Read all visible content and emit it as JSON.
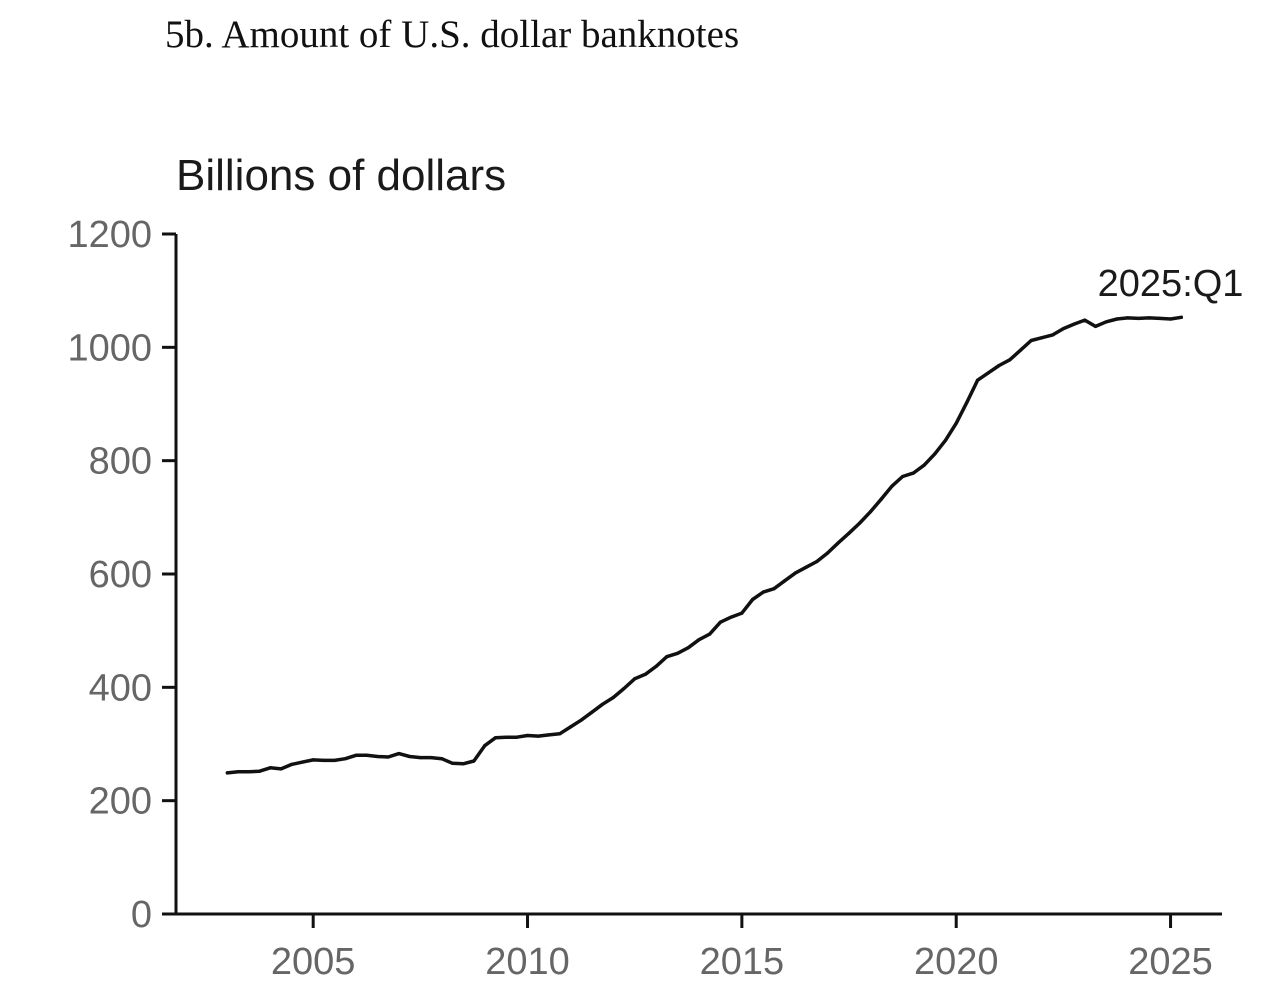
{
  "title": "5b. Amount of U.S. dollar banknotes",
  "chart_data": {
    "type": "line",
    "title": "5b. Amount of U.S. dollar banknotes",
    "ylabel": "Billions of dollars",
    "xlabel": "",
    "xlim": [
      2001.8,
      2026.2
    ],
    "ylim": [
      0,
      1200
    ],
    "yticks": [
      0,
      200,
      400,
      600,
      800,
      1000,
      1200
    ],
    "xticks": [
      2005,
      2010,
      2015,
      2020,
      2025
    ],
    "grid": false,
    "line_color": "#111111",
    "annotation": {
      "text": "2025:Q1",
      "x": 2025.0,
      "y": 1050
    },
    "series": [
      {
        "x": [
          2003.0,
          2003.25,
          2003.5,
          2003.75,
          2004.0,
          2004.25,
          2004.5,
          2004.75,
          2005.0,
          2005.25,
          2005.5,
          2005.75,
          2006.0,
          2006.25,
          2006.5,
          2006.75,
          2007.0,
          2007.25,
          2007.5,
          2007.75,
          2008.0,
          2008.25,
          2008.5,
          2008.75,
          2009.0,
          2009.25,
          2009.5,
          2009.75,
          2010.0,
          2010.25,
          2010.5,
          2010.75,
          2011.0,
          2011.25,
          2011.5,
          2011.75,
          2012.0,
          2012.25,
          2012.5,
          2012.75,
          2013.0,
          2013.25,
          2013.5,
          2013.75,
          2014.0,
          2014.25,
          2014.5,
          2014.75,
          2015.0,
          2015.25,
          2015.5,
          2015.75,
          2016.0,
          2016.25,
          2016.5,
          2016.75,
          2017.0,
          2017.25,
          2017.5,
          2017.75,
          2018.0,
          2018.25,
          2018.5,
          2018.75,
          2019.0,
          2019.25,
          2019.5,
          2019.75,
          2020.0,
          2020.25,
          2020.5,
          2020.75,
          2021.0,
          2021.25,
          2021.5,
          2021.75,
          2022.0,
          2022.25,
          2022.5,
          2022.75,
          2023.0,
          2023.25,
          2023.5,
          2023.75,
          2024.0,
          2024.25,
          2024.5,
          2024.75,
          2025.0,
          2025.25
        ],
        "y": [
          249,
          251,
          251,
          252,
          258,
          256,
          264,
          268,
          272,
          271,
          271,
          274,
          280,
          280,
          278,
          277,
          283,
          278,
          276,
          276,
          274,
          266,
          265,
          270,
          297,
          311,
          312,
          312,
          315,
          314,
          316,
          318,
          330,
          342,
          356,
          370,
          382,
          398,
          415,
          423,
          437,
          454,
          460,
          470,
          484,
          494,
          515,
          524,
          531,
          555,
          568,
          574,
          588,
          602,
          612,
          622,
          637,
          655,
          672,
          690,
          710,
          732,
          755,
          772,
          778,
          792,
          812,
          836,
          866,
          903,
          942,
          955,
          968,
          978,
          995,
          1012,
          1017,
          1022,
          1033,
          1041,
          1048,
          1037,
          1045,
          1050,
          1052,
          1051,
          1052,
          1051,
          1050,
          1053
        ]
      }
    ]
  }
}
